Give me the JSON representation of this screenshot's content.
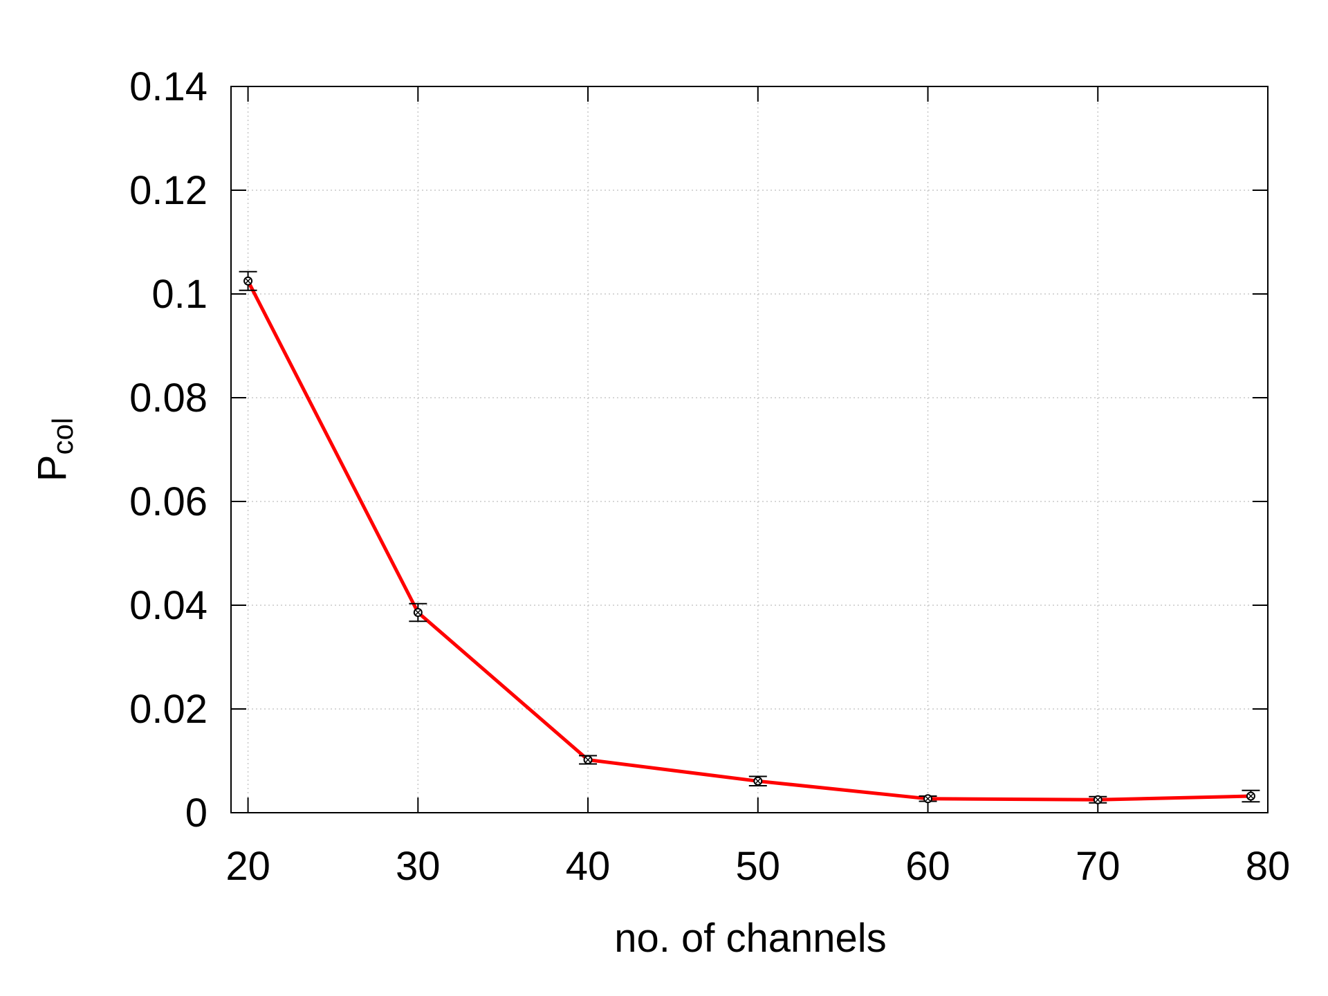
{
  "chart_data": {
    "type": "line",
    "title": "",
    "xlabel": "no. of channels",
    "ylabel": {
      "main": "P",
      "subscript": "col"
    },
    "xlim": [
      19,
      80
    ],
    "ylim": [
      0,
      0.14
    ],
    "xticks": [
      20,
      30,
      40,
      50,
      60,
      70,
      80
    ],
    "yticks": [
      0,
      0.02,
      0.04,
      0.06,
      0.08,
      0.1,
      0.12,
      0.14
    ],
    "xtick_labels": [
      "20",
      "30",
      "40",
      "50",
      "60",
      "70",
      "80"
    ],
    "ytick_labels": [
      "0",
      "0.02",
      "0.04",
      "0.06",
      "0.08",
      "0.1",
      "0.12",
      "0.14"
    ],
    "grid": true,
    "legend": "none",
    "series": [
      {
        "color": "#ff0000",
        "marker_color": "#000000",
        "x": [
          20,
          30,
          40,
          50,
          60,
          70,
          79
        ],
        "y": [
          0.1025,
          0.0386,
          0.0102,
          0.0061,
          0.0027,
          0.0025,
          0.0032
        ],
        "error": [
          0.0018,
          0.0017,
          0.0008,
          0.0009,
          0.0005,
          0.0006,
          0.0011
        ]
      }
    ]
  }
}
